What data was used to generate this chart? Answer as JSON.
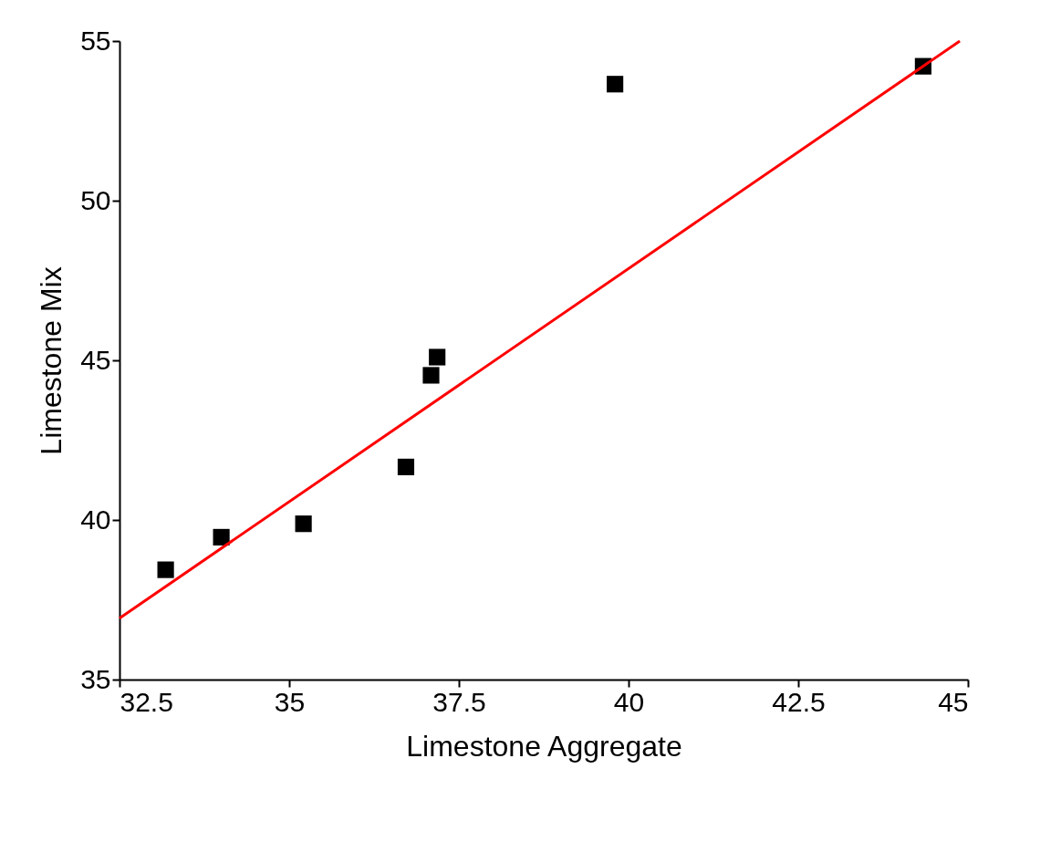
{
  "chart_data": {
    "type": "scatter",
    "xlabel": "Limestone Aggregate",
    "ylabel": "Limestone Mix",
    "xlim": [
      32.5,
      45
    ],
    "xticks": [
      32.5,
      35,
      37.5,
      40,
      42.5,
      45
    ],
    "ylim": [
      35,
      55
    ],
    "yticks": [
      35,
      40,
      45,
      50,
      55
    ],
    "grid": false,
    "series": [
      {
        "marker": "square",
        "color": "#000000",
        "x": [
          33.18,
          34.0,
          35.21,
          36.72,
          37.09,
          37.18,
          39.8,
          44.34
        ],
        "values": [
          38.44,
          39.46,
          39.88,
          41.66,
          44.53,
          45.1,
          53.65,
          54.21
        ]
      },
      {
        "type": "line",
        "color": "#ff0000",
        "line_style": "solid",
        "marker": "none",
        "x": [
          32.5,
          44.88
        ],
        "values": [
          36.92,
          55
        ]
      }
    ]
  }
}
